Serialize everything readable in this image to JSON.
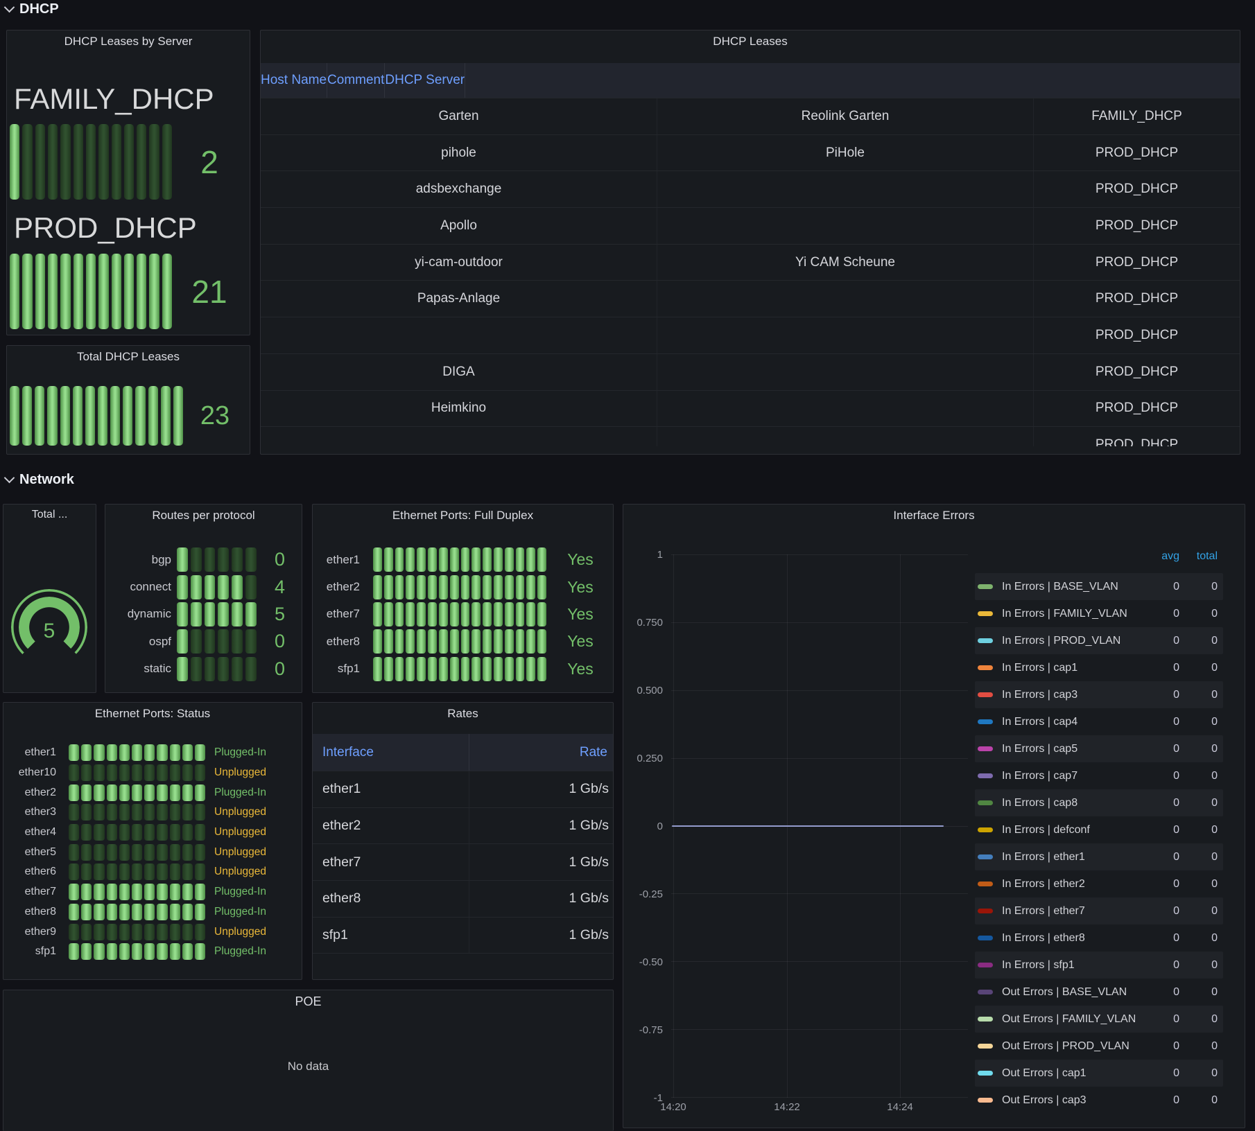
{
  "sections": {
    "dhcp": "DHCP",
    "network": "Network"
  },
  "colors": {
    "green": "#73BF69",
    "yellow": "#EAB839",
    "link_blue": "#6E9FFF",
    "legend_header_blue": "#33A2E5",
    "zero_line": "#949BCD",
    "panel_bg": "#181B1F",
    "page_bg": "#111217"
  },
  "leases_by_server": {
    "title": "DHCP Leases by Server",
    "servers": [
      {
        "name": "FAMILY_DHCP",
        "value": "2",
        "segments": 13,
        "lit": 1
      },
      {
        "name": "PROD_DHCP",
        "value": "21",
        "segments": 13,
        "lit": 13
      }
    ]
  },
  "total_leases": {
    "title": "Total DHCP Leases",
    "value": "23",
    "segments": 14,
    "lit": 14
  },
  "dhcp_table": {
    "title": "DHCP Leases",
    "columns": [
      "Host Name",
      "Comment",
      "DHCP Server"
    ],
    "rows": [
      [
        "Garten",
        "Reolink Garten",
        "FAMILY_DHCP"
      ],
      [
        "pihole",
        "PiHole",
        "PROD_DHCP"
      ],
      [
        "adsbexchange",
        "",
        "PROD_DHCP"
      ],
      [
        "Apollo",
        "",
        "PROD_DHCP"
      ],
      [
        "yi-cam-outdoor",
        "Yi CAM Scheune",
        "PROD_DHCP"
      ],
      [
        "Papas-Anlage",
        "",
        "PROD_DHCP"
      ],
      [
        "",
        "",
        "PROD_DHCP"
      ],
      [
        "DIGA",
        "",
        "PROD_DHCP"
      ],
      [
        "Heimkino",
        "",
        "PROD_DHCP"
      ],
      [
        "",
        "",
        "PROD_DHCP"
      ]
    ]
  },
  "routes_gauge": {
    "title": "Total ...",
    "value": "5"
  },
  "routes": {
    "title": "Routes per protocol",
    "rows": [
      {
        "label": "bgp",
        "value": "0",
        "segments": 6,
        "lit": 1
      },
      {
        "label": "connect",
        "value": "4",
        "segments": 6,
        "lit": 5
      },
      {
        "label": "dynamic",
        "value": "5",
        "segments": 6,
        "lit": 6
      },
      {
        "label": "ospf",
        "value": "0",
        "segments": 6,
        "lit": 1
      },
      {
        "label": "static",
        "value": "0",
        "segments": 6,
        "lit": 1
      }
    ]
  },
  "full_duplex": {
    "title": "Ethernet Ports: Full Duplex",
    "rows": [
      {
        "label": "ether1",
        "value": "Yes",
        "segments": 16,
        "lit": 16
      },
      {
        "label": "ether2",
        "value": "Yes",
        "segments": 16,
        "lit": 16
      },
      {
        "label": "ether7",
        "value": "Yes",
        "segments": 16,
        "lit": 16
      },
      {
        "label": "ether8",
        "value": "Yes",
        "segments": 16,
        "lit": 16
      },
      {
        "label": "sfp1",
        "value": "Yes",
        "segments": 16,
        "lit": 16
      }
    ]
  },
  "port_status": {
    "title": "Ethernet Ports: Status",
    "rows": [
      {
        "label": "ether1",
        "status": "Plugged-In",
        "state": "on",
        "segments": 11,
        "lit": 11
      },
      {
        "label": "ether10",
        "status": "Unplugged",
        "state": "off",
        "segments": 11,
        "lit": 0
      },
      {
        "label": "ether2",
        "status": "Plugged-In",
        "state": "on",
        "segments": 11,
        "lit": 11
      },
      {
        "label": "ether3",
        "status": "Unplugged",
        "state": "off",
        "segments": 11,
        "lit": 0
      },
      {
        "label": "ether4",
        "status": "Unplugged",
        "state": "off",
        "segments": 11,
        "lit": 0
      },
      {
        "label": "ether5",
        "status": "Unplugged",
        "state": "off",
        "segments": 11,
        "lit": 0
      },
      {
        "label": "ether6",
        "status": "Unplugged",
        "state": "off",
        "segments": 11,
        "lit": 0
      },
      {
        "label": "ether7",
        "status": "Plugged-In",
        "state": "on",
        "segments": 11,
        "lit": 11
      },
      {
        "label": "ether8",
        "status": "Plugged-In",
        "state": "on",
        "segments": 11,
        "lit": 11
      },
      {
        "label": "ether9",
        "status": "Unplugged",
        "state": "off",
        "segments": 11,
        "lit": 0
      },
      {
        "label": "sfp1",
        "status": "Plugged-In",
        "state": "on",
        "segments": 11,
        "lit": 11
      }
    ]
  },
  "rates": {
    "title": "Rates",
    "columns": [
      "Interface",
      "Rate"
    ],
    "rows": [
      [
        "ether1",
        "1 Gb/s"
      ],
      [
        "ether2",
        "1 Gb/s"
      ],
      [
        "ether7",
        "1 Gb/s"
      ],
      [
        "ether8",
        "1 Gb/s"
      ],
      [
        "sfp1",
        "1 Gb/s"
      ]
    ]
  },
  "poe": {
    "title": "POE",
    "message": "No data"
  },
  "interface_errors": {
    "title": "Interface Errors",
    "legend_value_headers": [
      "avg",
      "total"
    ],
    "yticks": [
      "1",
      "0.750",
      "0.500",
      "0.250",
      "0",
      "-0.25",
      "-0.50",
      "-0.75",
      "-1"
    ],
    "xticks": [
      "14:20",
      "14:22",
      "14:24"
    ],
    "series": [
      {
        "label": "In Errors | BASE_VLAN",
        "color": "#7EB26D",
        "avg": "0",
        "total": "0"
      },
      {
        "label": "In Errors | FAMILY_VLAN",
        "color": "#EAB839",
        "avg": "0",
        "total": "0"
      },
      {
        "label": "In Errors | PROD_VLAN",
        "color": "#6ED0E0",
        "avg": "0",
        "total": "0"
      },
      {
        "label": "In Errors | cap1",
        "color": "#EF843C",
        "avg": "0",
        "total": "0"
      },
      {
        "label": "In Errors | cap3",
        "color": "#E24D42",
        "avg": "0",
        "total": "0"
      },
      {
        "label": "In Errors | cap4",
        "color": "#1F78C1",
        "avg": "0",
        "total": "0"
      },
      {
        "label": "In Errors | cap5",
        "color": "#BA43A9",
        "avg": "0",
        "total": "0"
      },
      {
        "label": "In Errors | cap7",
        "color": "#7E6BAE",
        "avg": "0",
        "total": "0"
      },
      {
        "label": "In Errors | cap8",
        "color": "#508642",
        "avg": "0",
        "total": "0"
      },
      {
        "label": "In Errors | defconf",
        "color": "#CCA300",
        "avg": "0",
        "total": "0"
      },
      {
        "label": "In Errors | ether1",
        "color": "#447EBC",
        "avg": "0",
        "total": "0"
      },
      {
        "label": "In Errors | ether2",
        "color": "#C15C17",
        "avg": "0",
        "total": "0"
      },
      {
        "label": "In Errors | ether7",
        "color": "#9A1508",
        "avg": "0",
        "total": "0"
      },
      {
        "label": "In Errors | ether8",
        "color": "#15589F",
        "avg": "0",
        "total": "0"
      },
      {
        "label": "In Errors | sfp1",
        "color": "#8A2C82",
        "avg": "0",
        "total": "0"
      },
      {
        "label": "Out Errors | BASE_VLAN",
        "color": "#584477",
        "avg": "0",
        "total": "0"
      },
      {
        "label": "Out Errors | FAMILY_VLAN",
        "color": "#B7DBAB",
        "avg": "0",
        "total": "0"
      },
      {
        "label": "Out Errors | PROD_VLAN",
        "color": "#F4D598",
        "avg": "0",
        "total": "0"
      },
      {
        "label": "Out Errors | cap1",
        "color": "#70DBED",
        "avg": "0",
        "total": "0"
      },
      {
        "label": "Out Errors | cap3",
        "color": "#F9BA8F",
        "avg": "0",
        "total": "0"
      }
    ]
  },
  "chart_data": {
    "type": "line",
    "title": "Interface Errors",
    "x": [
      "14:20",
      "14:22",
      "14:24"
    ],
    "ylim": [
      -1,
      1
    ],
    "yticks": [
      1,
      0.75,
      0.5,
      0.25,
      0,
      -0.25,
      -0.5,
      -0.75,
      -1
    ],
    "grid": true,
    "legend_position": "right",
    "series": [
      {
        "name": "In Errors | BASE_VLAN",
        "values": [
          0,
          0,
          0
        ]
      },
      {
        "name": "In Errors | FAMILY_VLAN",
        "values": [
          0,
          0,
          0
        ]
      },
      {
        "name": "In Errors | PROD_VLAN",
        "values": [
          0,
          0,
          0
        ]
      },
      {
        "name": "In Errors | cap1",
        "values": [
          0,
          0,
          0
        ]
      },
      {
        "name": "In Errors | cap3",
        "values": [
          0,
          0,
          0
        ]
      },
      {
        "name": "In Errors | cap4",
        "values": [
          0,
          0,
          0
        ]
      },
      {
        "name": "In Errors | cap5",
        "values": [
          0,
          0,
          0
        ]
      },
      {
        "name": "In Errors | cap7",
        "values": [
          0,
          0,
          0
        ]
      },
      {
        "name": "In Errors | cap8",
        "values": [
          0,
          0,
          0
        ]
      },
      {
        "name": "In Errors | defconf",
        "values": [
          0,
          0,
          0
        ]
      },
      {
        "name": "In Errors | ether1",
        "values": [
          0,
          0,
          0
        ]
      },
      {
        "name": "In Errors | ether2",
        "values": [
          0,
          0,
          0
        ]
      },
      {
        "name": "In Errors | ether7",
        "values": [
          0,
          0,
          0
        ]
      },
      {
        "name": "In Errors | ether8",
        "values": [
          0,
          0,
          0
        ]
      },
      {
        "name": "In Errors | sfp1",
        "values": [
          0,
          0,
          0
        ]
      },
      {
        "name": "Out Errors | BASE_VLAN",
        "values": [
          0,
          0,
          0
        ]
      },
      {
        "name": "Out Errors | FAMILY_VLAN",
        "values": [
          0,
          0,
          0
        ]
      },
      {
        "name": "Out Errors | PROD_VLAN",
        "values": [
          0,
          0,
          0
        ]
      },
      {
        "name": "Out Errors | cap1",
        "values": [
          0,
          0,
          0
        ]
      },
      {
        "name": "Out Errors | cap3",
        "values": [
          0,
          0,
          0
        ]
      }
    ]
  }
}
